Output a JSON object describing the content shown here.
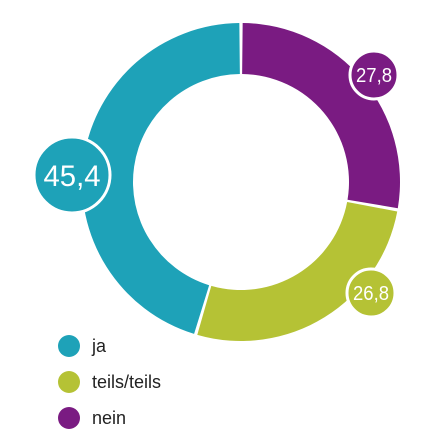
{
  "chart_data": {
    "type": "pie",
    "variant": "donut",
    "legend_position": "bottom-left",
    "series": [
      {
        "name": "nein",
        "label": "27,8",
        "value": 27.8,
        "color": "#7a1b82"
      },
      {
        "name": "teils/teils",
        "label": "26,8",
        "value": 26.8,
        "color": "#b5c235"
      },
      {
        "name": "ja",
        "label": "45,4",
        "value": 45.4,
        "color": "#1ea2b8"
      }
    ],
    "legend": [
      {
        "label": "ja",
        "color": "#1ea2b8"
      },
      {
        "label": "teils/teils",
        "color": "#b5c235"
      },
      {
        "label": "nein",
        "color": "#7a1b82"
      }
    ]
  }
}
